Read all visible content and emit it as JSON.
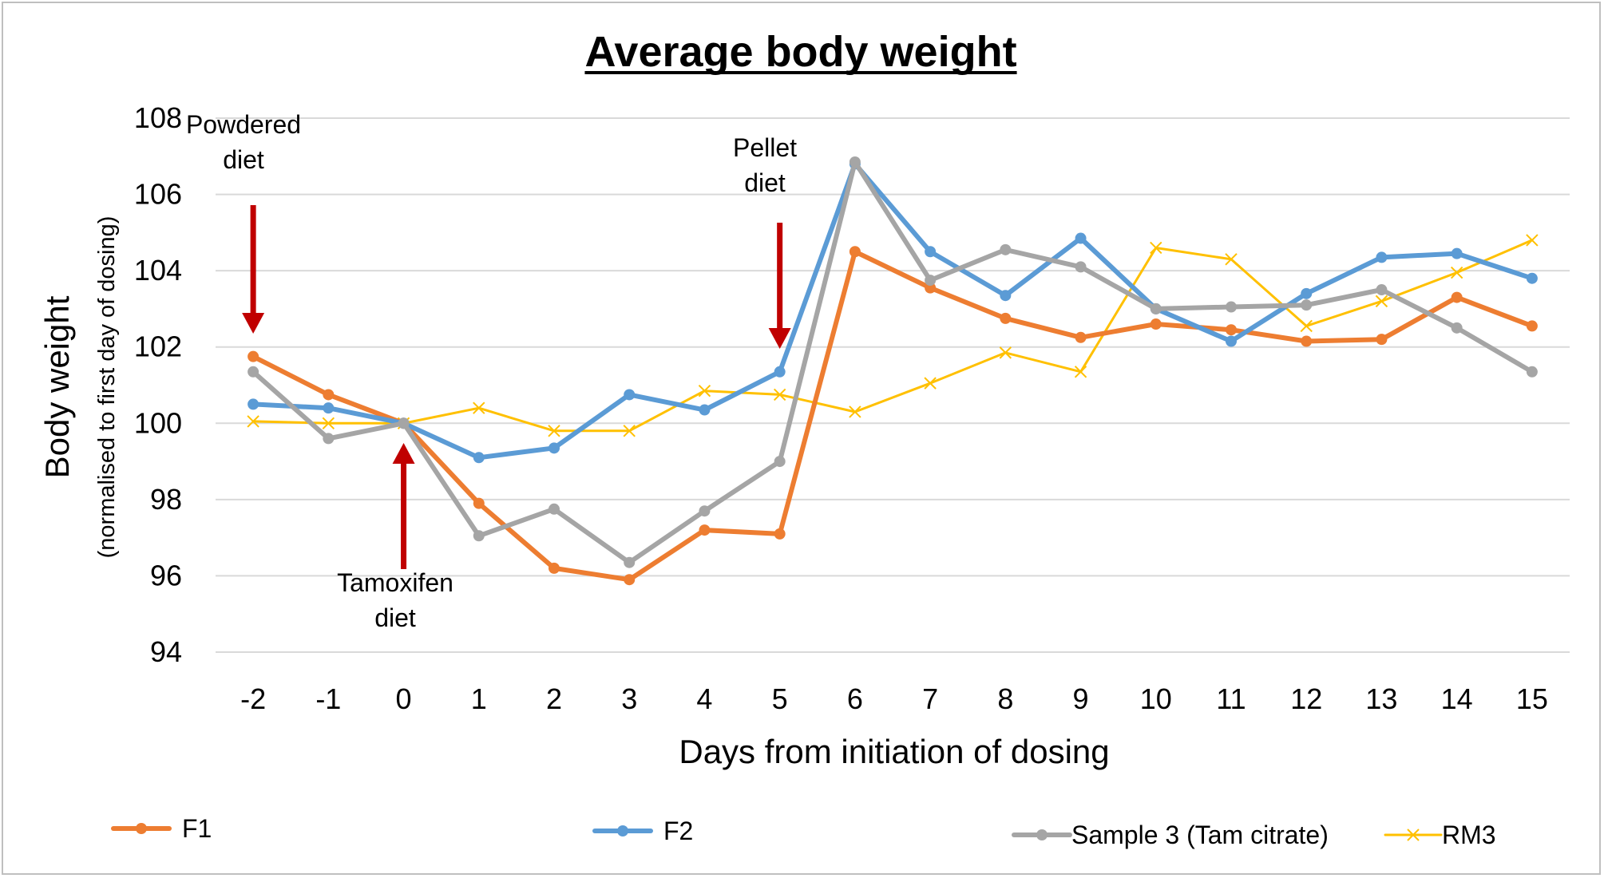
{
  "chart_data": {
    "type": "line",
    "title": "Average body weight",
    "xlabel": "Days from initiation of dosing",
    "ylabel": "Body weight",
    "ylabel_sub": "(normalised to first day of dosing)",
    "categories": [
      "-2",
      "-1",
      "0",
      "1",
      "2",
      "3",
      "4",
      "5",
      "6",
      "7",
      "8",
      "9",
      "10",
      "11",
      "12",
      "13",
      "14",
      "15"
    ],
    "ylim": [
      94,
      108
    ],
    "yticks": [
      94,
      96,
      98,
      100,
      102,
      104,
      106,
      108
    ],
    "grid": true,
    "legend_position": "bottom",
    "series": [
      {
        "name": "F1",
        "color": "#ED7D31",
        "marker": "circle",
        "line_width": "thick",
        "values": [
          101.75,
          100.75,
          100.0,
          97.9,
          96.2,
          95.9,
          97.2,
          97.1,
          104.5,
          103.55,
          102.75,
          102.25,
          102.6,
          102.45,
          102.15,
          102.2,
          103.3,
          102.55
        ]
      },
      {
        "name": "F2",
        "color": "#5B9BD5",
        "marker": "circle",
        "line_width": "thick",
        "values": [
          100.5,
          100.4,
          100.0,
          99.1,
          99.35,
          100.75,
          100.35,
          101.35,
          106.8,
          104.5,
          103.35,
          104.85,
          103.0,
          102.15,
          103.4,
          104.35,
          104.45,
          103.8
        ]
      },
      {
        "name": "Sample 3 (Tam citrate)",
        "color": "#A5A5A5",
        "marker": "circle",
        "line_width": "thick",
        "values": [
          101.35,
          99.6,
          100.0,
          97.05,
          97.75,
          96.35,
          97.7,
          99.0,
          106.85,
          103.75,
          104.55,
          104.1,
          103.0,
          103.05,
          103.1,
          103.5,
          102.5,
          101.35
        ]
      },
      {
        "name": "RM3",
        "color": "#FFC000",
        "marker": "x",
        "line_width": "thin",
        "values": [
          100.05,
          100.0,
          100.0,
          100.4,
          99.8,
          99.8,
          100.85,
          100.75,
          100.3,
          101.05,
          101.85,
          101.35,
          104.6,
          104.3,
          102.55,
          103.2,
          103.95,
          104.8
        ]
      }
    ],
    "annotations": [
      {
        "id": "powdered",
        "lines": [
          "Powdered",
          "diet"
        ],
        "x": "-2",
        "arrow": "down",
        "arrow_color": "#C00000"
      },
      {
        "id": "tamoxifen",
        "lines": [
          "Tamoxifen",
          "diet"
        ],
        "x": "0",
        "arrow": "up",
        "arrow_color": "#C00000"
      },
      {
        "id": "pellet",
        "lines": [
          "Pellet",
          "diet"
        ],
        "x": "5",
        "arrow": "down",
        "arrow_color": "#C00000"
      }
    ]
  }
}
